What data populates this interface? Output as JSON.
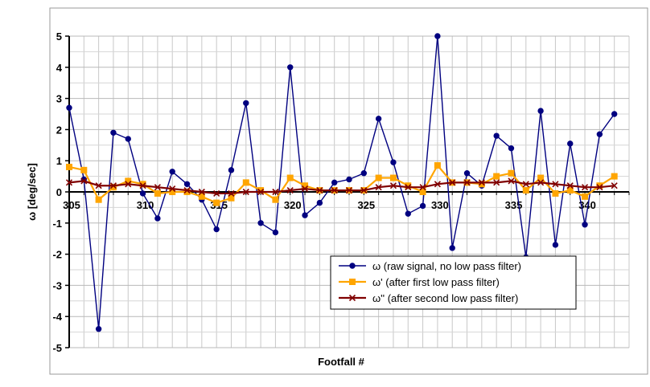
{
  "chart_data": {
    "type": "line",
    "title": "",
    "xlabel": "Footfall #",
    "ylabel": "ω [deg/sec]",
    "xlim": [
      305,
      343
    ],
    "ylim": [
      -5,
      5
    ],
    "x_major_ticks": [
      305,
      310,
      315,
      320,
      325,
      330,
      335,
      340
    ],
    "x_minor_step": 1,
    "y_major_ticks": [
      -5,
      -4,
      -3,
      -2,
      -1,
      0,
      1,
      2,
      3,
      4,
      5
    ],
    "y_minor_step": 0.5,
    "grid": true,
    "legend_position": "bottom-right",
    "x": [
      305,
      306,
      307,
      308,
      309,
      310,
      311,
      312,
      313,
      314,
      315,
      316,
      317,
      318,
      319,
      320,
      321,
      322,
      323,
      324,
      325,
      326,
      327,
      328,
      329,
      330,
      331,
      332,
      333,
      334,
      335,
      336,
      337,
      338,
      339,
      340,
      341,
      342
    ],
    "series": [
      {
        "name": "ω (raw signal, no low pass filter)",
        "color": "#000080",
        "marker": "circle",
        "values": [
          2.7,
          0.4,
          -4.4,
          1.9,
          1.7,
          -0.05,
          -0.85,
          0.65,
          0.25,
          -0.25,
          -1.2,
          0.7,
          2.85,
          -1.0,
          -1.3,
          4.0,
          -0.75,
          -0.35,
          0.3,
          0.4,
          0.6,
          2.35,
          0.95,
          -0.7,
          -0.45,
          5.0,
          -1.8,
          0.6,
          0.2,
          1.8,
          1.4,
          -2.1,
          2.6,
          -1.7,
          1.55,
          -1.05,
          1.85,
          2.5
        ]
      },
      {
        "name": "ω' (after first low pass filter)",
        "color": "#ffa500",
        "marker": "square",
        "values": [
          0.8,
          0.7,
          -0.25,
          0.15,
          0.35,
          0.25,
          -0.05,
          0.0,
          0.0,
          -0.15,
          -0.35,
          -0.2,
          0.3,
          0.05,
          -0.25,
          0.45,
          0.2,
          0.05,
          0.05,
          0.05,
          0.05,
          0.45,
          0.45,
          0.2,
          0.0,
          0.85,
          0.3,
          0.3,
          0.25,
          0.5,
          0.6,
          0.05,
          0.45,
          -0.05,
          0.05,
          -0.15,
          0.2,
          0.5
        ]
      },
      {
        "name": "ω'' (after second low pass filter)",
        "color": "#800000",
        "marker": "x",
        "values": [
          0.3,
          0.35,
          0.2,
          0.2,
          0.25,
          0.2,
          0.15,
          0.1,
          0.05,
          0.0,
          -0.05,
          -0.05,
          0.0,
          0.0,
          0.0,
          0.05,
          0.1,
          0.05,
          0.05,
          0.05,
          0.05,
          0.15,
          0.2,
          0.15,
          0.15,
          0.25,
          0.3,
          0.3,
          0.3,
          0.3,
          0.35,
          0.25,
          0.3,
          0.25,
          0.2,
          0.15,
          0.15,
          0.2
        ]
      }
    ]
  }
}
